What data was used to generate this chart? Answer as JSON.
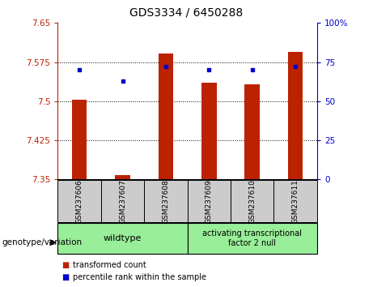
{
  "title": "GDS3334 / 6450288",
  "samples": [
    "GSM237606",
    "GSM237607",
    "GSM237608",
    "GSM237609",
    "GSM237610",
    "GSM237611"
  ],
  "transformed_counts": [
    7.502,
    7.358,
    7.592,
    7.536,
    7.532,
    7.594
  ],
  "percentile_ranks": [
    70,
    63,
    72,
    70,
    70,
    72
  ],
  "ylim_left": [
    7.35,
    7.65
  ],
  "ylim_right": [
    0,
    100
  ],
  "yticks_left": [
    7.35,
    7.425,
    7.5,
    7.575,
    7.65
  ],
  "yticks_right": [
    0,
    25,
    50,
    75,
    100
  ],
  "ytick_labels_left": [
    "7.35",
    "7.425",
    "7.5",
    "7.575",
    "7.65"
  ],
  "ytick_labels_right": [
    "0",
    "25",
    "50",
    "75",
    "100%"
  ],
  "bar_color": "#bb2200",
  "dot_color": "#0000cc",
  "bar_bottom": 7.35,
  "genotype_label": "genotype/variation",
  "legend_items": [
    {
      "color": "#bb2200",
      "label": "transformed count"
    },
    {
      "color": "#0000cc",
      "label": "percentile rank within the sample"
    }
  ],
  "sample_box_color": "#cccccc",
  "group_area_color": "#99ee99",
  "group1_label": "wildtype",
  "group2_label": "activating transcriptional\nfactor 2 null",
  "title_fontsize": 10,
  "tick_fontsize": 7.5,
  "bar_width": 0.35
}
